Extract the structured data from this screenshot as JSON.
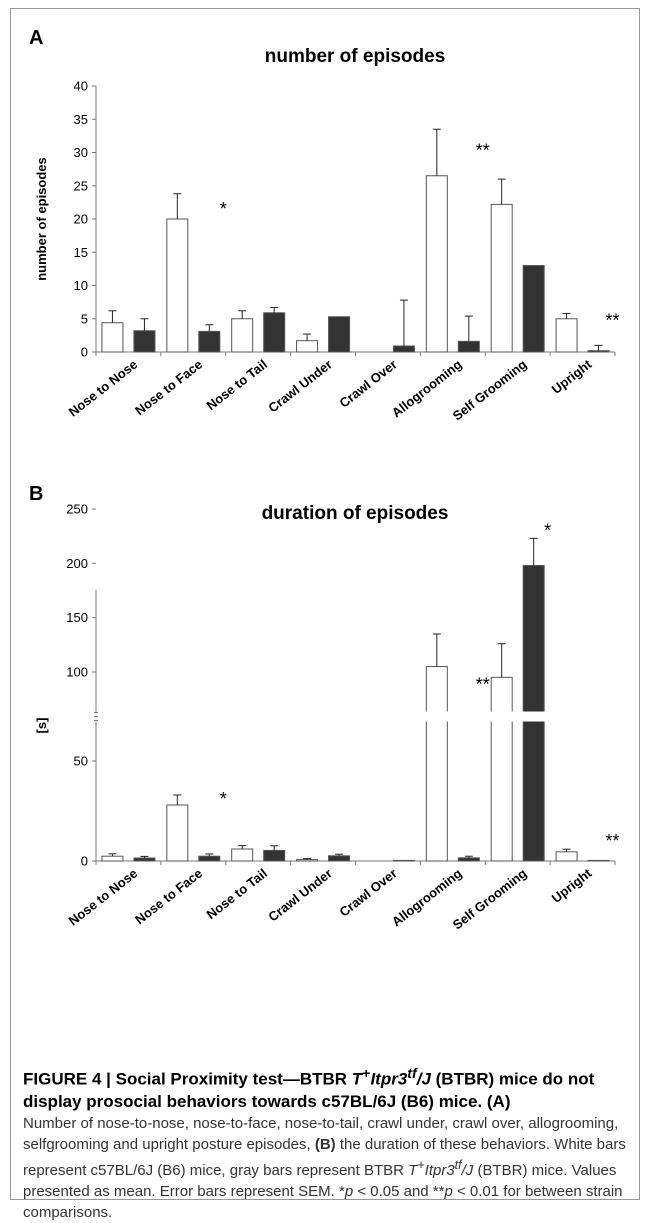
{
  "chart_data": [
    {
      "panel": "A",
      "type": "bar",
      "title": "number of episodes",
      "ylabel": "number of episodes",
      "xlabel": "",
      "ylim": [
        0,
        40
      ],
      "yticks": [
        0,
        5,
        10,
        15,
        20,
        25,
        30,
        35,
        40
      ],
      "categories": [
        "Nose to Nose",
        "Nose to Face",
        "Nose to Tail",
        "Crawl Under",
        "Crawl Over",
        "Allogrooming",
        "Self Grooming",
        "Upright"
      ],
      "series": [
        {
          "color": "#ffffff",
          "values": [
            4.4,
            20.0,
            5.0,
            1.7,
            0,
            26.5,
            22.2,
            5.0
          ],
          "errors": [
            1.8,
            3.8,
            1.2,
            1.0,
            0,
            7.0,
            3.8,
            0.8
          ]
        },
        {
          "color": "#333333",
          "values": [
            3.2,
            3.1,
            5.9,
            5.3,
            0.9,
            1.6,
            13.0,
            0.2
          ],
          "errors": [
            1.8,
            1.0,
            0.8,
            0,
            6.9,
            3.8,
            0,
            0.8
          ]
        }
      ],
      "annotations": [
        {
          "category": "Nose to Face",
          "text": "*",
          "y": 21.5
        },
        {
          "category": "Allogrooming",
          "text": "**",
          "y": 30.3
        },
        {
          "category": "Upright",
          "text": "**",
          "y": 4.7
        }
      ]
    },
    {
      "panel": "B",
      "type": "bar",
      "title": "duration of episodes",
      "ylabel": "[s]",
      "xlabel": "",
      "axis_break": [
        50,
        100
      ],
      "yticks": [
        0,
        50,
        100,
        150,
        200,
        250
      ],
      "categories": [
        "Nose to Nose",
        "Nose to Face",
        "Nose to Tail",
        "Crawl Under",
        "Crawl Over",
        "Allogrooming",
        "Self Grooming",
        "Upright"
      ],
      "series": [
        {
          "color": "#ffffff",
          "values": [
            2.4,
            28.0,
            6.0,
            0.7,
            0,
            105,
            97,
            4.6
          ],
          "errors": [
            1.2,
            5.0,
            1.7,
            0.5,
            0,
            30,
            29,
            1.3
          ]
        },
        {
          "color": "#333333",
          "values": [
            1.5,
            2.4,
            5.3,
            2.6,
            0.3,
            1.6,
            198,
            0.3
          ],
          "errors": [
            0.8,
            1.1,
            2.3,
            0.8,
            0,
            0.8,
            25,
            0
          ]
        }
      ],
      "annotations": [
        {
          "category": "Nose to Face",
          "text": "*",
          "y": 31
        },
        {
          "category": "Allogrooming",
          "text": "**",
          "y": 93
        },
        {
          "category": "Self Grooming",
          "text": "*",
          "y": 230
        },
        {
          "category": "Upright",
          "text": "**",
          "y": 10
        }
      ]
    }
  ],
  "panel_labels": {
    "a": "A",
    "b": "B"
  },
  "caption": {
    "title_prefix": "FIGURE 4 | Social Proximity test—BTBR ",
    "title_t": "T",
    "title_plus": "+",
    "title_itpr": "Itpr3",
    "title_tf": "tf",
    "title_slashj": "/J",
    "title_rest": " (BTBR) mice do not display prosocial behaviors towards c57BL/6J (B6) mice. (A)",
    "body_1": "Number of nose-to-nose, nose-to-face, nose-to-tail, crawl under, crawl over, allogrooming, selfgrooming and upright posture episodes, ",
    "body_b": "(B)",
    "body_2": " the duration of these behaviors. White bars represent c57BL/6J (B6) mice, gray bars represent BTBR ",
    "body_t": "T",
    "body_plus": "+",
    "body_itpr": "Itpr3",
    "body_tf": "tf",
    "body_slashj": "/J",
    "body_3": " (BTBR) mice. Values presented as mean. Error bars represent SEM. *",
    "body_p1": "p",
    "body_4": " < 0.05 and **",
    "body_p2": "p",
    "body_5": " < 0.01 for between strain comparisons."
  }
}
